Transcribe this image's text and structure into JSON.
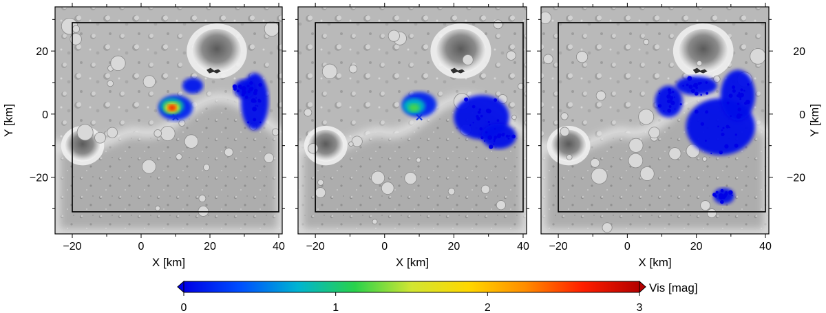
{
  "chart_data": {
    "type": "heatmap",
    "panels": [
      {
        "id": "panel-1",
        "xlabel": "X [km]",
        "ylabel": "Y [km]",
        "xlim": [
          -25,
          41
        ],
        "ylim": [
          -38,
          34
        ],
        "x_ticks": [
          -20,
          0,
          20,
          40
        ],
        "y_ticks": [
          -20,
          0,
          20
        ],
        "show_x_tick_labels": true,
        "show_y_tick_labels": "left",
        "domain_box": {
          "x": [
            -20,
            40
          ],
          "y": [
            -31,
            29
          ]
        },
        "marker": {
          "symbol": "x",
          "x": 10,
          "y": -1,
          "color": "#1133dd"
        },
        "vis_patches": [
          {
            "x": 10,
            "y": 2,
            "rx": 5,
            "ry": 4,
            "v": 0.15
          },
          {
            "x": 15,
            "y": 9,
            "rx": 3,
            "ry": 2.5,
            "v": 0.1
          },
          {
            "x": 9,
            "y": 2.5,
            "rx": 3.4,
            "ry": 2.6,
            "v": 0.9
          },
          {
            "x": 9,
            "y": 2,
            "rx": 2.2,
            "ry": 1.7,
            "v": 1.8
          },
          {
            "x": 9,
            "y": 2,
            "rx": 1.2,
            "ry": 1,
            "v": 2.7
          },
          {
            "x": 33,
            "y": 4,
            "rx": 4,
            "ry": 9,
            "v": 0.05
          },
          {
            "x": 30,
            "y": 8,
            "rx": 3,
            "ry": 3,
            "v": 0.05
          }
        ]
      },
      {
        "id": "panel-2",
        "xlabel": "X [km]",
        "ylabel": "",
        "xlim": [
          -25,
          41
        ],
        "ylim": [
          -38,
          34
        ],
        "x_ticks": [
          -20,
          0,
          20,
          40
        ],
        "y_ticks": [
          -20,
          0,
          20
        ],
        "show_x_tick_labels": true,
        "show_y_tick_labels": "none",
        "domain_box": {
          "x": [
            -20,
            40
          ],
          "y": [
            -31,
            29
          ]
        },
        "marker": {
          "symbol": "x",
          "x": 10,
          "y": -1,
          "color": "#1133dd"
        },
        "vis_patches": [
          {
            "x": 10,
            "y": 3,
            "rx": 5,
            "ry": 4,
            "v": 0.15
          },
          {
            "x": 8.5,
            "y": 2.5,
            "rx": 3.2,
            "ry": 2.5,
            "v": 0.8
          },
          {
            "x": 8.5,
            "y": 2,
            "rx": 1.6,
            "ry": 1.3,
            "v": 1.2
          },
          {
            "x": 28,
            "y": -1,
            "rx": 8,
            "ry": 7,
            "v": 0.05
          },
          {
            "x": 33,
            "y": -7,
            "rx": 5,
            "ry": 4,
            "v": 0.05
          }
        ]
      },
      {
        "id": "panel-3",
        "xlabel": "X [km]",
        "ylabel": "Y [km]",
        "xlim": [
          -25,
          41
        ],
        "ylim": [
          -38,
          34
        ],
        "x_ticks": [
          -20,
          0,
          20,
          40
        ],
        "y_ticks": [
          -20,
          0,
          20
        ],
        "show_x_tick_labels": true,
        "show_y_tick_labels": "right",
        "domain_box": {
          "x": [
            -20,
            40
          ],
          "y": [
            -31,
            29
          ]
        },
        "marker": null,
        "vis_patches": [
          {
            "x": 12,
            "y": 4,
            "rx": 4,
            "ry": 5,
            "v": 0.08
          },
          {
            "x": 20,
            "y": 9,
            "rx": 6,
            "ry": 3,
            "v": 0.08
          },
          {
            "x": 27,
            "y": -4,
            "rx": 10,
            "ry": 9,
            "v": 0.05
          },
          {
            "x": 32,
            "y": 6,
            "rx": 5,
            "ry": 8,
            "v": 0.05
          },
          {
            "x": 28,
            "y": -26,
            "rx": 3,
            "ry": 2.5,
            "v": 0.05
          }
        ]
      }
    ],
    "colorbar": {
      "label": "Vis [mag]",
      "min": 0,
      "max": 3,
      "ticks": [
        0,
        1,
        2,
        3
      ],
      "colormap": [
        "#0000e6",
        "#0050ff",
        "#00b4d2",
        "#28d24b",
        "#d2e632",
        "#ffd700",
        "#ff8c00",
        "#ff1e00",
        "#b40000"
      ]
    }
  }
}
